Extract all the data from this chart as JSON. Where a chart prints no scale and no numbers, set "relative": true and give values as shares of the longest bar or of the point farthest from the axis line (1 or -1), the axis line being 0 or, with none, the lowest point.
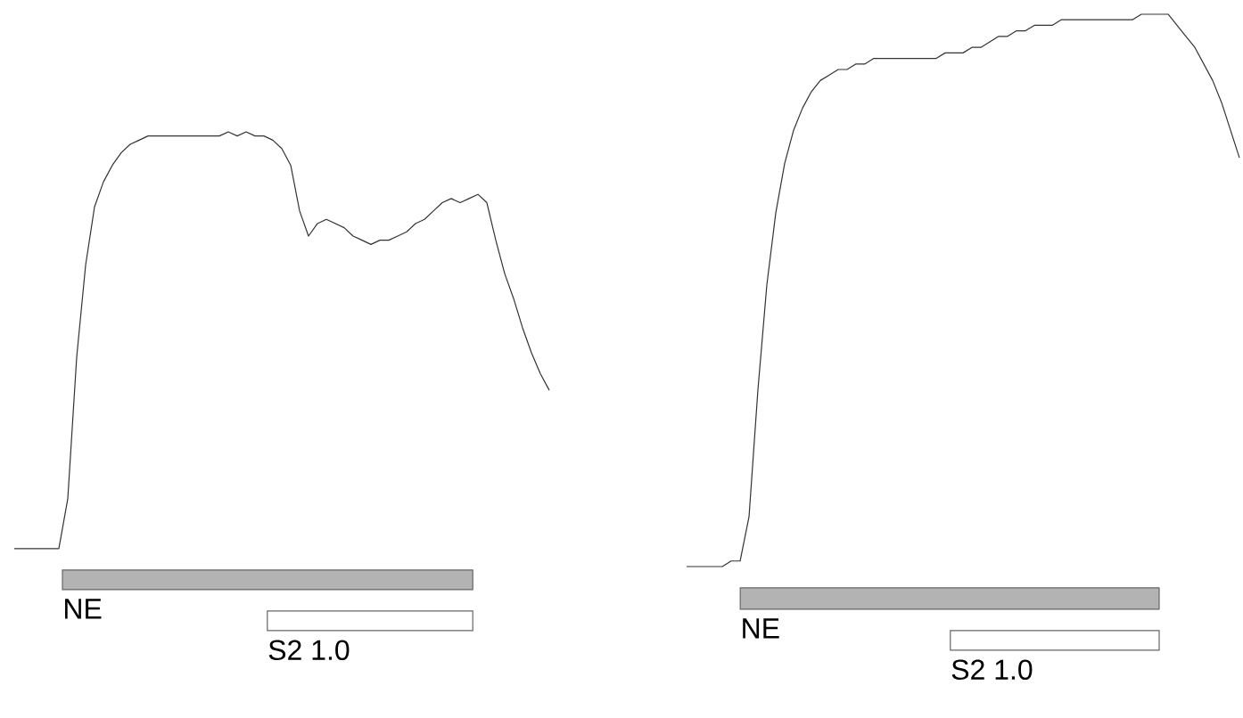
{
  "chart_data": [
    {
      "type": "line",
      "relative": true,
      "categories": [
        null,
        null,
        null,
        null,
        null,
        null,
        null,
        null,
        null,
        null,
        null,
        null,
        null,
        null,
        null,
        null,
        null,
        null,
        null,
        null,
        null,
        null,
        null,
        null,
        null,
        null,
        null,
        null,
        null,
        null,
        null,
        null,
        null,
        null,
        null,
        null,
        null,
        null,
        null,
        null,
        null,
        null,
        null,
        null,
        null,
        null,
        null,
        null,
        null,
        null,
        null,
        null,
        null,
        null,
        null,
        null,
        null,
        null,
        null,
        null,
        null
      ],
      "series": [
        {
          "color": "#333333",
          "values": [
            0,
            0,
            0,
            0,
            0,
            0,
            0.12,
            0.46,
            0.68,
            0.82,
            0.88,
            0.92,
            0.95,
            0.97,
            0.98,
            0.99,
            0.99,
            0.99,
            0.99,
            0.99,
            0.99,
            0.99,
            0.99,
            0.99,
            1,
            0.99,
            1,
            0.99,
            0.99,
            0.98,
            0.96,
            0.92,
            0.81,
            0.75,
            0.78,
            0.79,
            0.78,
            0.77,
            0.75,
            0.74,
            0.73,
            0.74,
            0.74,
            0.75,
            0.76,
            0.78,
            0.79,
            0.81,
            0.83,
            0.84,
            0.83,
            0.84,
            0.85,
            0.83,
            0.74,
            0.66,
            0.6,
            0.53,
            0.47,
            0.42,
            0.38
          ]
        }
      ],
      "annotations": [
        "NE",
        "S2 1.0"
      ]
    },
    {
      "type": "line",
      "relative": true,
      "categories": [
        null,
        null,
        null,
        null,
        null,
        null,
        null,
        null,
        null,
        null,
        null,
        null,
        null,
        null,
        null,
        null,
        null,
        null,
        null,
        null,
        null,
        null,
        null,
        null,
        null,
        null,
        null,
        null,
        null,
        null,
        null,
        null,
        null,
        null,
        null,
        null,
        null,
        null,
        null,
        null,
        null,
        null,
        null,
        null,
        null,
        null,
        null,
        null,
        null,
        null,
        null,
        null,
        null,
        null,
        null,
        null,
        null,
        null,
        null,
        null,
        null,
        null,
        null
      ],
      "series": [
        {
          "color": "#333333",
          "values": [
            0,
            0,
            0,
            0,
            0,
            0.01,
            0.01,
            0.09,
            0.32,
            0.51,
            0.64,
            0.73,
            0.79,
            0.83,
            0.86,
            0.88,
            0.89,
            0.9,
            0.9,
            0.91,
            0.91,
            0.92,
            0.92,
            0.92,
            0.92,
            0.92,
            0.92,
            0.92,
            0.92,
            0.93,
            0.93,
            0.93,
            0.94,
            0.94,
            0.95,
            0.96,
            0.96,
            0.97,
            0.97,
            0.98,
            0.98,
            0.98,
            0.99,
            0.99,
            0.99,
            0.99,
            0.99,
            0.99,
            0.99,
            0.99,
            0.99,
            1,
            1,
            1,
            1,
            0.98,
            0.96,
            0.94,
            0.91,
            0.88,
            0.84,
            0.79,
            0.74
          ]
        }
      ],
      "annotations": [
        "NE",
        "S2 1.0"
      ]
    }
  ]
}
